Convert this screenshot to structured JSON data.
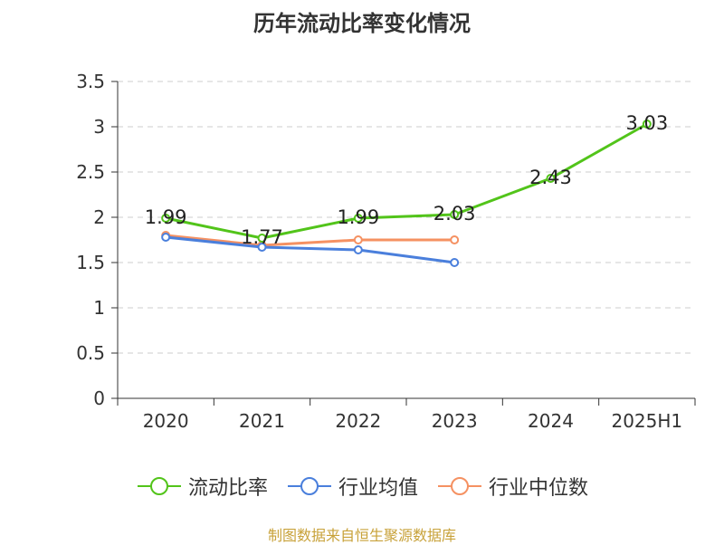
{
  "chart_data": {
    "type": "line",
    "title": "历年流动比率变化情况",
    "categories": [
      "2020",
      "2021",
      "2022",
      "2023",
      "2024",
      "2025H1"
    ],
    "ylim": [
      0,
      3.5
    ],
    "yticks": [
      "0",
      "0.5",
      "1",
      "1.5",
      "2",
      "2.5",
      "3",
      "3.5"
    ],
    "grid": true,
    "legend_position": "bottom",
    "series": [
      {
        "name": "流动比率",
        "color": "#52c41a",
        "values": [
          1.99,
          1.77,
          1.99,
          2.03,
          2.43,
          3.03
        ],
        "labels": [
          "1.99",
          "1.77",
          "1.99",
          "2.03",
          "2.43",
          "3.03"
        ]
      },
      {
        "name": "行业均值",
        "color": "#4a7fdc",
        "values": [
          1.78,
          1.67,
          1.64,
          1.5,
          null,
          null
        ]
      },
      {
        "name": "行业中位数",
        "color": "#f59162",
        "values": [
          1.8,
          1.69,
          1.75,
          1.75,
          null,
          null
        ]
      }
    ]
  },
  "footer": {
    "source": "制图数据来自恒生聚源数据库"
  }
}
